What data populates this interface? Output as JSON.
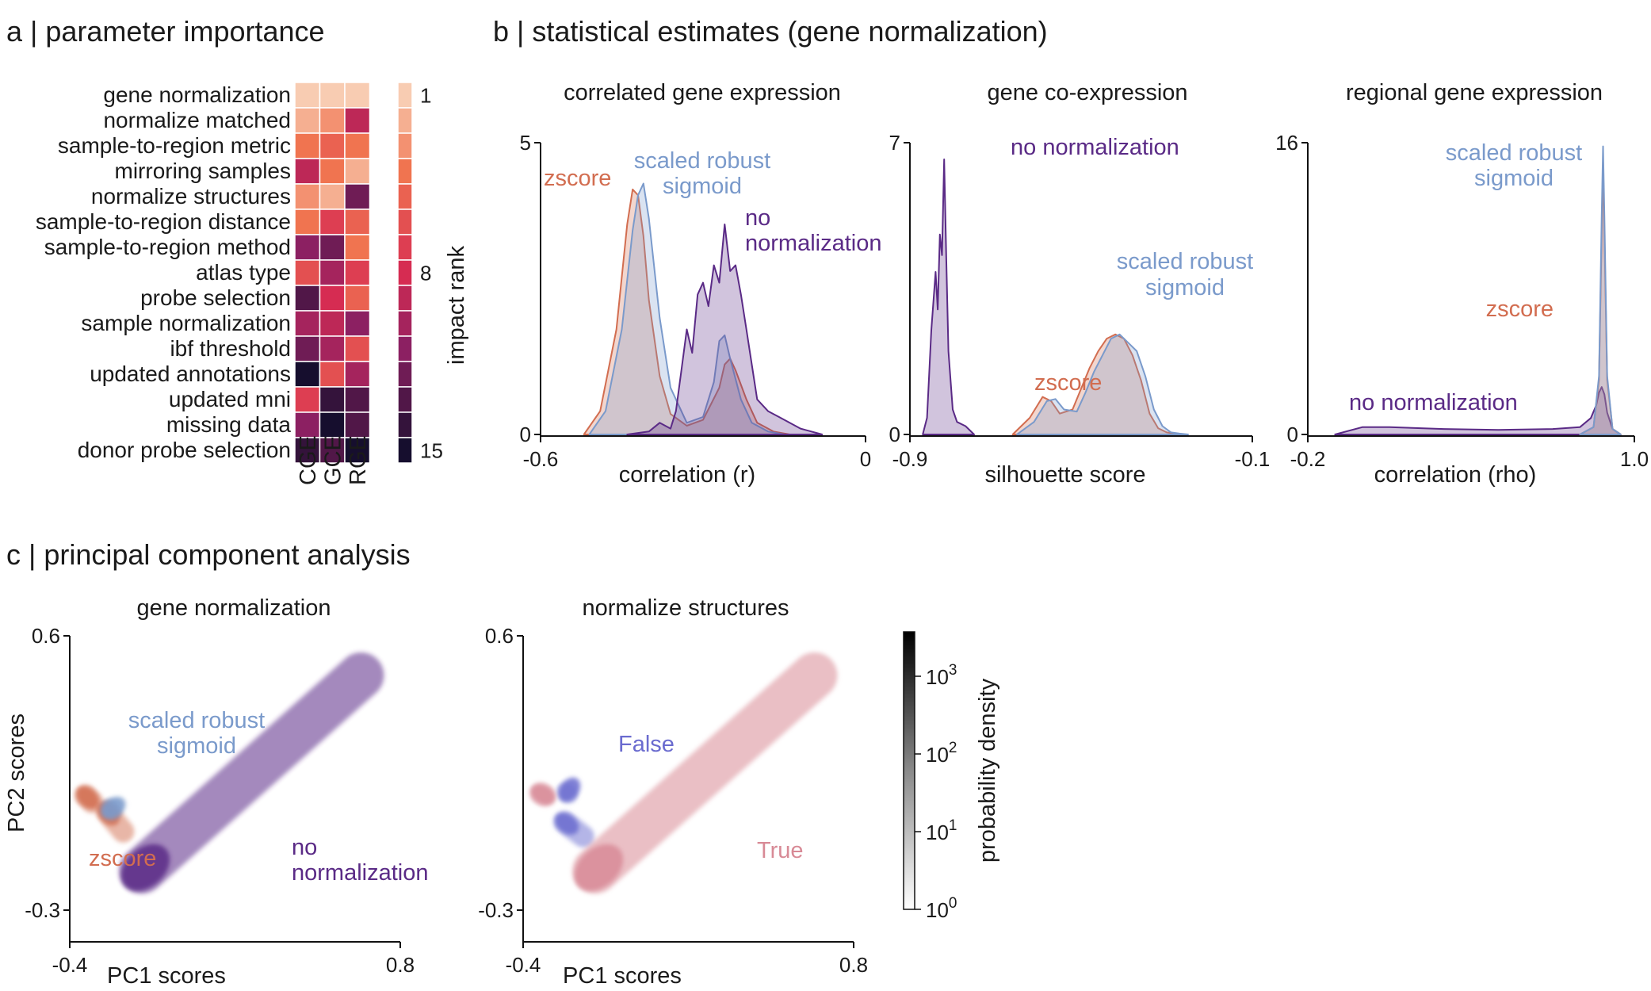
{
  "panel_a": {
    "title": "a | parameter importance",
    "rows": [
      "gene normalization",
      "normalize matched",
      "sample-to-region metric",
      "mirroring samples",
      "normalize structures",
      "sample-to-region distance",
      "sample-to-region method",
      "atlas type",
      "probe selection",
      "sample normalization",
      "ibf threshold",
      "updated annotations",
      "updated mni",
      "missing data",
      "donor probe selection"
    ],
    "columns": [
      "CGE",
      "GCE",
      "RGE"
    ],
    "rank_ticks": [
      "1",
      "8",
      "15"
    ],
    "rank_label": "impact rank"
  },
  "panel_b": {
    "title": "b | statistical estimates (gene normalization)"
  },
  "panel_c": {
    "title": "c | principal component analysis",
    "colorbar_label": "probability density",
    "colorbar_ticks": [
      {
        "base": "10",
        "exp": "3",
        "frac": 0.84
      },
      {
        "base": "10",
        "exp": "2",
        "frac": 0.56
      },
      {
        "base": "10",
        "exp": "1",
        "frac": 0.28
      },
      {
        "base": "10",
        "exp": "0",
        "frac": 0.0
      }
    ]
  },
  "colors": {
    "zscore": "#d26d50",
    "scaled_robust_sigmoid": "#7a9acb",
    "no_normalization": "#5a2a86",
    "false_group": "#6a6bcf",
    "true_group": "#d88a96"
  },
  "chart_data": [
    {
      "type": "heatmap",
      "title": "a | parameter importance",
      "rows": [
        "gene normalization",
        "normalize matched",
        "sample-to-region metric",
        "mirroring samples",
        "normalize structures",
        "sample-to-region distance",
        "sample-to-region method",
        "atlas type",
        "probe selection",
        "sample normalization",
        "ibf threshold",
        "updated annotations",
        "updated mni",
        "missing data",
        "donor probe selection"
      ],
      "columns": [
        "CGE",
        "GCE",
        "RGE"
      ],
      "values": [
        [
          1,
          1,
          1
        ],
        [
          2,
          3,
          9
        ],
        [
          4,
          5,
          4
        ],
        [
          9,
          4,
          2
        ],
        [
          3,
          2,
          12
        ],
        [
          4,
          7,
          5
        ],
        [
          11,
          12,
          4
        ],
        [
          6,
          10,
          7
        ],
        [
          13,
          8,
          5
        ],
        [
          10,
          9,
          11
        ],
        [
          12,
          10,
          6
        ],
        [
          15,
          6,
          10
        ],
        [
          7,
          14,
          13
        ],
        [
          11,
          15,
          13
        ],
        [
          14,
          13,
          15
        ]
      ],
      "rank_bar": [
        1,
        2,
        3,
        4,
        5,
        6,
        7,
        8,
        9,
        10,
        11,
        12,
        13,
        14,
        15
      ],
      "color_scale": "impact rank (1 = light peach, 15 = near black)"
    },
    {
      "type": "area",
      "title": "correlated gene expression",
      "xlabel": "correlation (r)",
      "xlim": [
        -0.6,
        0
      ],
      "ylim": [
        0,
        5
      ],
      "xticks": [
        "-0.6",
        "0"
      ],
      "yticks": [
        "0",
        "5"
      ],
      "series": [
        {
          "name": "zscore",
          "color": "#d26d50",
          "x": [
            -0.52,
            -0.49,
            -0.46,
            -0.44,
            -0.43,
            -0.42,
            -0.41,
            -0.4,
            -0.38,
            -0.36,
            -0.33,
            -0.3,
            -0.27,
            -0.26,
            -0.25,
            -0.24,
            -0.22,
            -0.2,
            -0.17,
            -0.14
          ],
          "y": [
            0,
            0.4,
            1.8,
            3.6,
            4.2,
            4.1,
            3.4,
            2.3,
            1.0,
            0.35,
            0.15,
            0.25,
            0.8,
            1.2,
            1.3,
            1.1,
            0.6,
            0.2,
            0.05,
            0
          ]
        },
        {
          "name": "scaled robust sigmoid",
          "color": "#7a9acb",
          "x": [
            -0.51,
            -0.48,
            -0.45,
            -0.43,
            -0.42,
            -0.41,
            -0.4,
            -0.38,
            -0.36,
            -0.33,
            -0.3,
            -0.28,
            -0.27,
            -0.26,
            -0.25,
            -0.23,
            -0.21,
            -0.18,
            -0.15
          ],
          "y": [
            0,
            0.4,
            1.8,
            3.5,
            4.1,
            4.3,
            3.7,
            2.0,
            0.8,
            0.2,
            0.3,
            0.9,
            1.6,
            1.7,
            1.3,
            0.6,
            0.2,
            0.05,
            0
          ]
        },
        {
          "name": "no normalization",
          "color": "#5a2a86",
          "x": [
            -0.44,
            -0.4,
            -0.38,
            -0.36,
            -0.35,
            -0.34,
            -0.33,
            -0.32,
            -0.31,
            -0.3,
            -0.29,
            -0.28,
            -0.27,
            -0.26,
            -0.25,
            -0.24,
            -0.23,
            -0.22,
            -0.21,
            -0.2,
            -0.18,
            -0.16,
            -0.12,
            -0.08
          ],
          "y": [
            0,
            0.05,
            0.2,
            0.1,
            0.4,
            1.1,
            1.8,
            1.4,
            2.4,
            2.6,
            2.2,
            2.9,
            2.6,
            3.6,
            2.8,
            2.9,
            2.4,
            1.8,
            1.2,
            0.6,
            0.4,
            0.3,
            0.1,
            0
          ]
        }
      ]
    },
    {
      "type": "area",
      "title": "gene co-expression",
      "xlabel": "silhouette score",
      "xlim": [
        -0.9,
        -0.1
      ],
      "ylim": [
        0,
        7
      ],
      "xticks": [
        "-0.9",
        "-0.1"
      ],
      "yticks": [
        "0",
        "7"
      ],
      "series": [
        {
          "name": "no normalization",
          "color": "#5a2a86",
          "x": [
            -0.87,
            -0.86,
            -0.85,
            -0.84,
            -0.835,
            -0.83,
            -0.825,
            -0.82,
            -0.815,
            -0.81,
            -0.8,
            -0.79,
            -0.77,
            -0.75
          ],
          "y": [
            0,
            0.4,
            2.5,
            3.9,
            3.0,
            4.8,
            4.3,
            6.6,
            4.2,
            2.0,
            0.6,
            0.3,
            0.2,
            0
          ]
        },
        {
          "name": "zscore",
          "color": "#d26d50",
          "x": [
            -0.66,
            -0.62,
            -0.59,
            -0.57,
            -0.55,
            -0.52,
            -0.5,
            -0.48,
            -0.46,
            -0.44,
            -0.42,
            -0.4,
            -0.38,
            -0.36,
            -0.34,
            -0.32,
            -0.3,
            -0.28,
            -0.26
          ],
          "y": [
            0,
            0.4,
            0.9,
            0.8,
            0.5,
            0.6,
            1.1,
            1.6,
            2.0,
            2.3,
            2.4,
            2.3,
            1.9,
            1.3,
            0.5,
            0.15,
            0.05,
            0.02,
            0
          ]
        },
        {
          "name": "scaled robust sigmoid",
          "color": "#7a9acb",
          "x": [
            -0.65,
            -0.61,
            -0.58,
            -0.56,
            -0.54,
            -0.51,
            -0.49,
            -0.47,
            -0.45,
            -0.43,
            -0.41,
            -0.39,
            -0.37,
            -0.35,
            -0.33,
            -0.31,
            -0.29,
            -0.27,
            -0.25
          ],
          "y": [
            0,
            0.3,
            0.8,
            0.85,
            0.6,
            0.55,
            1.0,
            1.5,
            1.9,
            2.3,
            2.4,
            2.2,
            2.0,
            1.4,
            0.6,
            0.2,
            0.05,
            0.02,
            0
          ]
        }
      ]
    },
    {
      "type": "area",
      "title": "regional gene expression",
      "xlabel": "correlation (rho)",
      "xlim": [
        -0.2,
        1.0
      ],
      "ylim": [
        0,
        16
      ],
      "xticks": [
        "-0.2",
        "1.0"
      ],
      "yticks": [
        "0",
        "16"
      ],
      "series": [
        {
          "name": "no normalization",
          "color": "#5a2a86",
          "x": [
            -0.1,
            0.0,
            0.1,
            0.3,
            0.5,
            0.7,
            0.8,
            0.84,
            0.86,
            0.87,
            0.88,
            0.89,
            0.9,
            0.92,
            0.95
          ],
          "y": [
            0,
            0.4,
            0.4,
            0.3,
            0.25,
            0.3,
            0.4,
            0.9,
            1.6,
            2.3,
            2.6,
            2.2,
            1.2,
            0.3,
            0
          ]
        },
        {
          "name": "zscore",
          "color": "#d26d50",
          "x": [
            0.8,
            0.85,
            0.87,
            0.88,
            0.885,
            0.89,
            0.9,
            0.92,
            0.95
          ],
          "y": [
            0,
            0.4,
            3.0,
            11.0,
            15.0,
            11.0,
            3.0,
            0.3,
            0
          ]
        },
        {
          "name": "scaled robust sigmoid",
          "color": "#7a9acb",
          "x": [
            0.8,
            0.85,
            0.87,
            0.88,
            0.885,
            0.89,
            0.9,
            0.92,
            0.95
          ],
          "y": [
            0,
            0.4,
            3.2,
            12.0,
            15.8,
            12.0,
            3.2,
            0.3,
            0
          ]
        }
      ]
    },
    {
      "type": "scatter",
      "title": "gene normalization",
      "xlabel": "PC1 scores",
      "ylabel": "PC2 scores",
      "xlim": [
        -0.4,
        0.8
      ],
      "ylim": [
        -0.3,
        0.6
      ],
      "xticks": [
        "-0.4",
        "0.8"
      ],
      "yticks": [
        "-0.3",
        "0.6"
      ],
      "groups": [
        {
          "name": "zscore",
          "color": "#d26d50",
          "segments": [
            [
              -0.37,
              0.1,
              -0.29,
              0.03
            ],
            [
              -0.29,
              0.05,
              -0.18,
              -0.07
            ]
          ]
        },
        {
          "name": "scaled robust sigmoid",
          "color": "#7a9acb",
          "segments": [
            [
              -0.28,
              0.01,
              -0.22,
              0.05
            ]
          ]
        },
        {
          "name": "no normalization",
          "color": "#5a2a86",
          "segments": [
            [
              -0.2,
              -0.22,
              0.72,
              0.52
            ]
          ]
        }
      ]
    },
    {
      "type": "scatter",
      "title": "normalize structures",
      "xlabel": "PC1 scores",
      "ylabel": "",
      "xlim": [
        -0.4,
        0.8
      ],
      "ylim": [
        -0.3,
        0.6
      ],
      "xticks": [
        "-0.4",
        "0.8"
      ],
      "yticks": [
        "-0.3",
        "0.6"
      ],
      "groups": [
        {
          "name": "False",
          "color": "#6a6bcf",
          "segments": [
            [
              -0.28,
              0.01,
              -0.15,
              -0.08
            ],
            [
              -0.26,
              0.06,
              -0.22,
              0.11
            ]
          ]
        },
        {
          "name": "True",
          "color": "#d88a96",
          "segments": [
            [
              -0.37,
              0.1,
              -0.29,
              0.06
            ],
            [
              -0.2,
              -0.22,
              0.72,
              0.52
            ]
          ]
        }
      ]
    }
  ]
}
